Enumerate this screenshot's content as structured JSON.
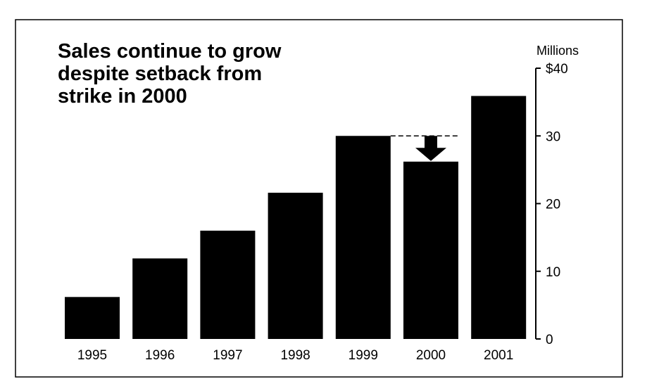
{
  "chart_data": {
    "type": "bar",
    "title_lines": [
      "Sales continue to grow",
      "despite setback from",
      "strike in 2000"
    ],
    "y_unit_label": "Millions",
    "categories": [
      "1995",
      "1996",
      "1997",
      "1998",
      "1999",
      "2000",
      "2001"
    ],
    "values": [
      6.2,
      11.9,
      16,
      21.6,
      30,
      26.2,
      35.9
    ],
    "ylim": [
      0,
      40
    ],
    "yticks": [
      0,
      10,
      20,
      30,
      40
    ],
    "ytick_labels": [
      "0",
      "10",
      "20",
      "30",
      "$40"
    ],
    "y_axis_position": "right",
    "grid": false,
    "legend": "none",
    "bar_color": "#000000",
    "annotation": {
      "type": "dashed-line-with-down-arrow",
      "from_category": "1999",
      "to_category": "2000",
      "from_value": 30,
      "to_value": 26.2
    }
  }
}
